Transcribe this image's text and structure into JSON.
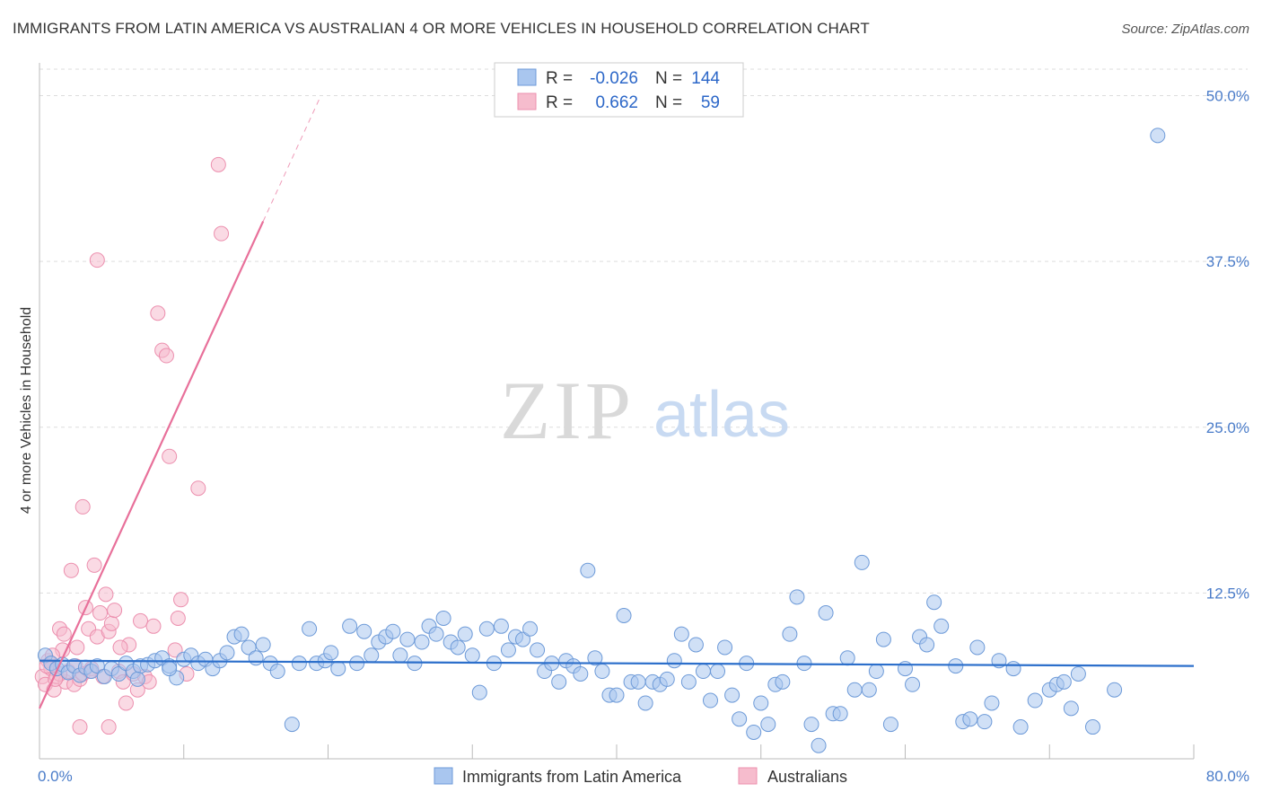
{
  "header": {
    "title": "IMMIGRANTS FROM LATIN AMERICA VS AUSTRALIAN 4 OR MORE VEHICLES IN HOUSEHOLD CORRELATION CHART",
    "source": "Source: ZipAtlas.com"
  },
  "watermark": {
    "zip": "ZIP",
    "atlas": "atlas"
  },
  "colors": {
    "blue_fill": "#a9c6ef",
    "blue_stroke": "#6d9ad8",
    "blue_line": "#2c6fcb",
    "pink_fill": "#f6bccd",
    "pink_stroke": "#ec8fae",
    "pink_line": "#e8709a",
    "tick_label": "#4a7cc9"
  },
  "legend": {
    "rows": [
      {
        "r_label": "R =",
        "r_value": "-0.026",
        "n_label": "N =",
        "n_value": "144"
      },
      {
        "r_label": "R =",
        "r_value": "0.662",
        "n_label": "N =",
        "n_value": "59"
      }
    ]
  },
  "bottom_legend": {
    "series1": "Immigrants from Latin America",
    "series2": "Australians"
  },
  "chart_data": {
    "type": "scatter",
    "title": "IMMIGRANTS FROM LATIN AMERICA VS AUSTRALIAN 4 OR MORE VEHICLES IN HOUSEHOLD CORRELATION CHART",
    "xlabel": "",
    "ylabel": "4 or more Vehicles in Household",
    "xlim": [
      0,
      80
    ],
    "ylim": [
      0,
      52
    ],
    "x_tick_labels": {
      "min": "0.0%",
      "max": "80.0%"
    },
    "y_ticks": [
      {
        "value": 12.5,
        "label": "12.5%"
      },
      {
        "value": 25,
        "label": "25.0%"
      },
      {
        "value": 37.5,
        "label": "37.5%"
      },
      {
        "value": 50,
        "label": "50.0%"
      }
    ],
    "series": [
      {
        "name": "Immigrants from Latin America",
        "r": -0.026,
        "n": 144,
        "trend": {
          "x0": 0,
          "y0": 7.4,
          "x1": 80,
          "y1": 7.0,
          "solid_to": 80
        },
        "points": [
          [
            0.4,
            7.8
          ],
          [
            0.8,
            7.2
          ],
          [
            1.2,
            6.8
          ],
          [
            1.6,
            7.1
          ],
          [
            2.0,
            6.5
          ],
          [
            2.4,
            7.0
          ],
          [
            2.8,
            6.3
          ],
          [
            3.2,
            6.9
          ],
          [
            3.6,
            6.6
          ],
          [
            4.0,
            7.0
          ],
          [
            4.5,
            6.2
          ],
          [
            5.0,
            6.8
          ],
          [
            5.5,
            6.4
          ],
          [
            6.0,
            7.2
          ],
          [
            6.5,
            6.6
          ],
          [
            7.0,
            7.0
          ],
          [
            7.5,
            7.1
          ],
          [
            8.0,
            7.4
          ],
          [
            8.5,
            7.6
          ],
          [
            9.0,
            7.0
          ],
          [
            9.5,
            6.1
          ],
          [
            10.0,
            7.5
          ],
          [
            10.5,
            7.8
          ],
          [
            11.0,
            7.2
          ],
          [
            11.5,
            7.5
          ],
          [
            12.0,
            6.8
          ],
          [
            12.5,
            7.4
          ],
          [
            13.0,
            8.0
          ],
          [
            13.5,
            9.2
          ],
          [
            14.0,
            9.4
          ],
          [
            14.5,
            8.4
          ],
          [
            15.0,
            7.6
          ],
          [
            15.5,
            8.6
          ],
          [
            16.0,
            7.2
          ],
          [
            16.5,
            6.6
          ],
          [
            17.5,
            2.6
          ],
          [
            18.0,
            7.2
          ],
          [
            18.7,
            9.8
          ],
          [
            19.2,
            7.2
          ],
          [
            19.8,
            7.4
          ],
          [
            20.2,
            8.0
          ],
          [
            20.7,
            6.8
          ],
          [
            21.5,
            10.0
          ],
          [
            22.0,
            7.2
          ],
          [
            22.5,
            9.6
          ],
          [
            23.0,
            7.8
          ],
          [
            23.5,
            8.8
          ],
          [
            24.0,
            9.2
          ],
          [
            24.5,
            9.6
          ],
          [
            25.0,
            7.8
          ],
          [
            25.5,
            9.0
          ],
          [
            26.0,
            7.2
          ],
          [
            26.5,
            8.8
          ],
          [
            27.0,
            10.0
          ],
          [
            27.5,
            9.4
          ],
          [
            28.0,
            10.6
          ],
          [
            28.5,
            8.8
          ],
          [
            29.0,
            8.4
          ],
          [
            29.5,
            9.4
          ],
          [
            30.0,
            7.8
          ],
          [
            30.5,
            5.0
          ],
          [
            31.0,
            9.8
          ],
          [
            31.5,
            7.2
          ],
          [
            32.0,
            10.0
          ],
          [
            32.5,
            8.2
          ],
          [
            33.0,
            9.2
          ],
          [
            33.5,
            9.0
          ],
          [
            34.0,
            9.8
          ],
          [
            34.5,
            8.2
          ],
          [
            35.0,
            6.6
          ],
          [
            35.5,
            7.2
          ],
          [
            36.0,
            5.8
          ],
          [
            36.5,
            7.4
          ],
          [
            37.0,
            7.0
          ],
          [
            37.5,
            6.4
          ],
          [
            38.0,
            14.2
          ],
          [
            38.5,
            7.6
          ],
          [
            39.0,
            6.6
          ],
          [
            39.5,
            4.8
          ],
          [
            40.0,
            4.8
          ],
          [
            40.5,
            10.8
          ],
          [
            41.0,
            5.8
          ],
          [
            41.5,
            5.8
          ],
          [
            42.0,
            4.2
          ],
          [
            42.5,
            5.8
          ],
          [
            43.0,
            5.6
          ],
          [
            43.5,
            6.0
          ],
          [
            44.0,
            7.4
          ],
          [
            44.5,
            9.4
          ],
          [
            45.0,
            5.8
          ],
          [
            45.5,
            8.6
          ],
          [
            46.0,
            6.6
          ],
          [
            46.5,
            4.4
          ],
          [
            47.0,
            6.6
          ],
          [
            47.5,
            8.4
          ],
          [
            48.0,
            4.8
          ],
          [
            48.5,
            3.0
          ],
          [
            49.0,
            7.2
          ],
          [
            49.5,
            2.0
          ],
          [
            50.0,
            4.2
          ],
          [
            50.5,
            2.6
          ],
          [
            51.0,
            5.6
          ],
          [
            51.5,
            5.8
          ],
          [
            52.0,
            9.4
          ],
          [
            52.5,
            12.2
          ],
          [
            53.0,
            7.2
          ],
          [
            53.5,
            2.6
          ],
          [
            54.0,
            1.0
          ],
          [
            54.5,
            11.0
          ],
          [
            55.0,
            3.4
          ],
          [
            55.5,
            3.4
          ],
          [
            56.0,
            7.6
          ],
          [
            56.5,
            5.2
          ],
          [
            57.0,
            14.8
          ],
          [
            57.5,
            5.2
          ],
          [
            58.0,
            6.6
          ],
          [
            58.5,
            9.0
          ],
          [
            59.0,
            2.6
          ],
          [
            60.0,
            6.8
          ],
          [
            60.5,
            5.6
          ],
          [
            61.0,
            9.2
          ],
          [
            61.5,
            8.6
          ],
          [
            62.0,
            11.8
          ],
          [
            62.5,
            10.0
          ],
          [
            63.5,
            7.0
          ],
          [
            64.0,
            2.8
          ],
          [
            64.5,
            3.0
          ],
          [
            65.0,
            8.4
          ],
          [
            65.5,
            2.8
          ],
          [
            66.0,
            4.2
          ],
          [
            66.5,
            7.4
          ],
          [
            67.5,
            6.8
          ],
          [
            68.0,
            2.4
          ],
          [
            69.0,
            4.4
          ],
          [
            70.0,
            5.2
          ],
          [
            70.5,
            5.6
          ],
          [
            71.0,
            5.8
          ],
          [
            71.5,
            3.8
          ],
          [
            72.0,
            6.4
          ],
          [
            73.0,
            2.4
          ],
          [
            74.5,
            5.2
          ],
          [
            77.5,
            47.0
          ],
          [
            6.8,
            6.0
          ],
          [
            9.0,
            6.8
          ]
        ]
      },
      {
        "name": "Australians",
        "r": 0.662,
        "n": 59,
        "trend": {
          "x0": 0,
          "y0": 3.8,
          "x1": 19.5,
          "y1": 50.0,
          "solid_to": 15.5
        },
        "points": [
          [
            0.2,
            6.2
          ],
          [
            0.4,
            5.6
          ],
          [
            0.6,
            7.4
          ],
          [
            0.8,
            6.8
          ],
          [
            1.0,
            5.2
          ],
          [
            1.2,
            6.2
          ],
          [
            1.4,
            9.8
          ],
          [
            1.6,
            8.2
          ],
          [
            1.8,
            5.8
          ],
          [
            2.0,
            6.6
          ],
          [
            2.2,
            14.2
          ],
          [
            2.4,
            5.6
          ],
          [
            2.6,
            8.4
          ],
          [
            2.8,
            6.0
          ],
          [
            3.0,
            6.4
          ],
          [
            3.2,
            11.4
          ],
          [
            3.4,
            9.8
          ],
          [
            3.6,
            6.8
          ],
          [
            3.8,
            14.6
          ],
          [
            4.0,
            9.2
          ],
          [
            4.2,
            11.0
          ],
          [
            4.4,
            6.2
          ],
          [
            4.6,
            12.4
          ],
          [
            4.8,
            9.6
          ],
          [
            5.0,
            10.2
          ],
          [
            5.2,
            11.2
          ],
          [
            5.5,
            6.6
          ],
          [
            5.8,
            5.8
          ],
          [
            6.0,
            4.2
          ],
          [
            6.2,
            8.6
          ],
          [
            6.5,
            6.4
          ],
          [
            6.8,
            5.2
          ],
          [
            7.0,
            10.4
          ],
          [
            7.3,
            6.2
          ],
          [
            7.6,
            5.8
          ],
          [
            7.9,
            10.0
          ],
          [
            8.2,
            33.6
          ],
          [
            8.5,
            30.8
          ],
          [
            8.8,
            30.4
          ],
          [
            9.0,
            22.8
          ],
          [
            9.4,
            8.2
          ],
          [
            9.6,
            10.6
          ],
          [
            9.8,
            12.0
          ],
          [
            10.2,
            6.4
          ],
          [
            11.0,
            20.4
          ],
          [
            12.4,
            44.8
          ],
          [
            12.6,
            39.6
          ],
          [
            4.0,
            37.6
          ],
          [
            3.0,
            19.0
          ],
          [
            2.8,
            2.4
          ],
          [
            4.8,
            2.4
          ],
          [
            1.4,
            6.4
          ],
          [
            0.9,
            7.8
          ],
          [
            1.7,
            9.4
          ],
          [
            2.5,
            7.0
          ],
          [
            3.5,
            6.6
          ],
          [
            5.6,
            8.4
          ],
          [
            1.1,
            6.0
          ],
          [
            0.5,
            7.0
          ]
        ]
      }
    ]
  }
}
